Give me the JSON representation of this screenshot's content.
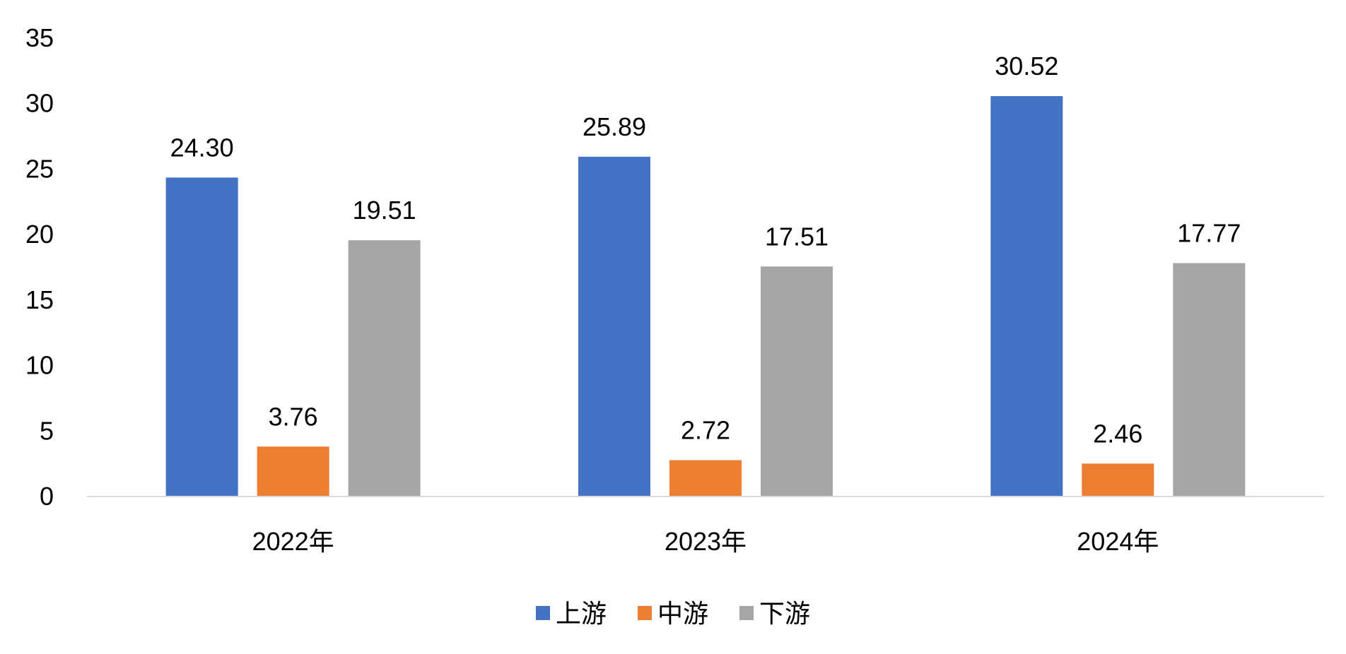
{
  "chart_data": {
    "type": "bar",
    "title": "",
    "xlabel": "",
    "ylabel": "",
    "categories": [
      "2022年",
      "2023年",
      "2024年"
    ],
    "series": [
      {
        "name": "上游",
        "color": "#4472C4",
        "values": [
          24.3,
          25.89,
          30.52
        ],
        "labels": [
          "24.30",
          "25.89",
          "30.52"
        ]
      },
      {
        "name": "中游",
        "color": "#ED7D31",
        "values": [
          3.76,
          2.72,
          2.46
        ],
        "labels": [
          "3.76",
          "2.72",
          "2.46"
        ]
      },
      {
        "name": "下游",
        "color": "#A5A5A5",
        "values": [
          19.51,
          17.51,
          17.77
        ],
        "labels": [
          "19.51",
          "17.51",
          "17.77"
        ]
      }
    ],
    "ylim": [
      0,
      35
    ],
    "yticks": [
      "0",
      "5",
      "10",
      "15",
      "20",
      "25",
      "30",
      "35"
    ],
    "grid": false,
    "legend_position": "bottom",
    "axis_color": "#D9D9D9"
  }
}
